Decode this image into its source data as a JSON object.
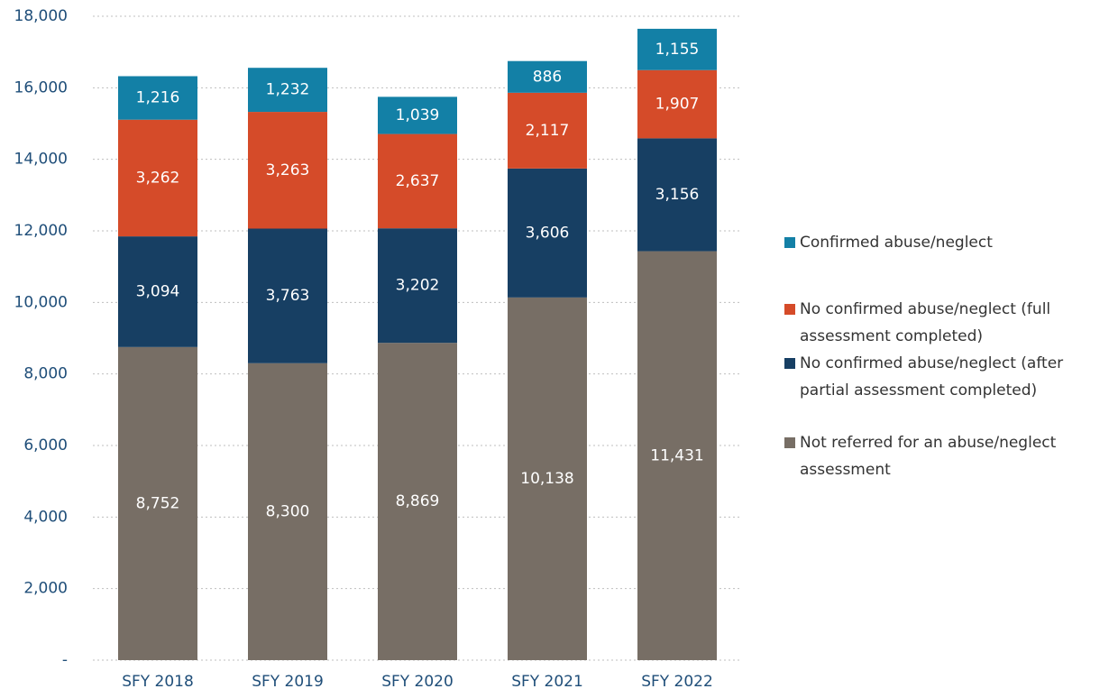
{
  "chart_data": {
    "type": "stacked_bar",
    "categories": [
      "SFY 2018",
      "SFY 2019",
      "SFY 2020",
      "SFY 2021",
      "SFY 2022"
    ],
    "series": [
      {
        "name": "Not referred for an abuse/neglect assessment",
        "color": "#776e65",
        "values": [
          8752,
          8300,
          8869,
          10138,
          11431
        ],
        "value_labels": [
          "8,752",
          "8,300",
          "8,869",
          "10,138",
          "11,431"
        ]
      },
      {
        "name": "No confirmed abuse/neglect (after partial assessment completed)",
        "color": "#173f63",
        "values": [
          3094,
          3763,
          3202,
          3606,
          3156
        ],
        "value_labels": [
          "3,094",
          "3,763",
          "3,202",
          "3,606",
          "3,156"
        ]
      },
      {
        "name": "No confirmed abuse/neglect (full assessment completed)",
        "color": "#d54b29",
        "values": [
          3262,
          3263,
          2637,
          2117,
          1907
        ],
        "value_labels": [
          "3,262",
          "3,263",
          "2,637",
          "2,117",
          "1,907"
        ]
      },
      {
        "name": "Confirmed abuse/neglect",
        "color": "#1380a6",
        "values": [
          1216,
          1232,
          1039,
          886,
          1155
        ],
        "value_labels": [
          "1,216",
          "1,232",
          "1,039",
          "886",
          "1,155"
        ]
      }
    ],
    "ylim": [
      0,
      18000
    ],
    "yticks": [
      {
        "value": 0,
        "label": "-"
      },
      {
        "value": 2000,
        "label": "2,000"
      },
      {
        "value": 4000,
        "label": "4,000"
      },
      {
        "value": 6000,
        "label": "6,000"
      },
      {
        "value": 8000,
        "label": "8,000"
      },
      {
        "value": 10000,
        "label": "10,000"
      },
      {
        "value": 12000,
        "label": "12,000"
      },
      {
        "value": 14000,
        "label": "14,000"
      },
      {
        "value": 16000,
        "label": "16,000"
      },
      {
        "value": 18000,
        "label": "18,000"
      }
    ],
    "grid": true,
    "legend": "right"
  }
}
